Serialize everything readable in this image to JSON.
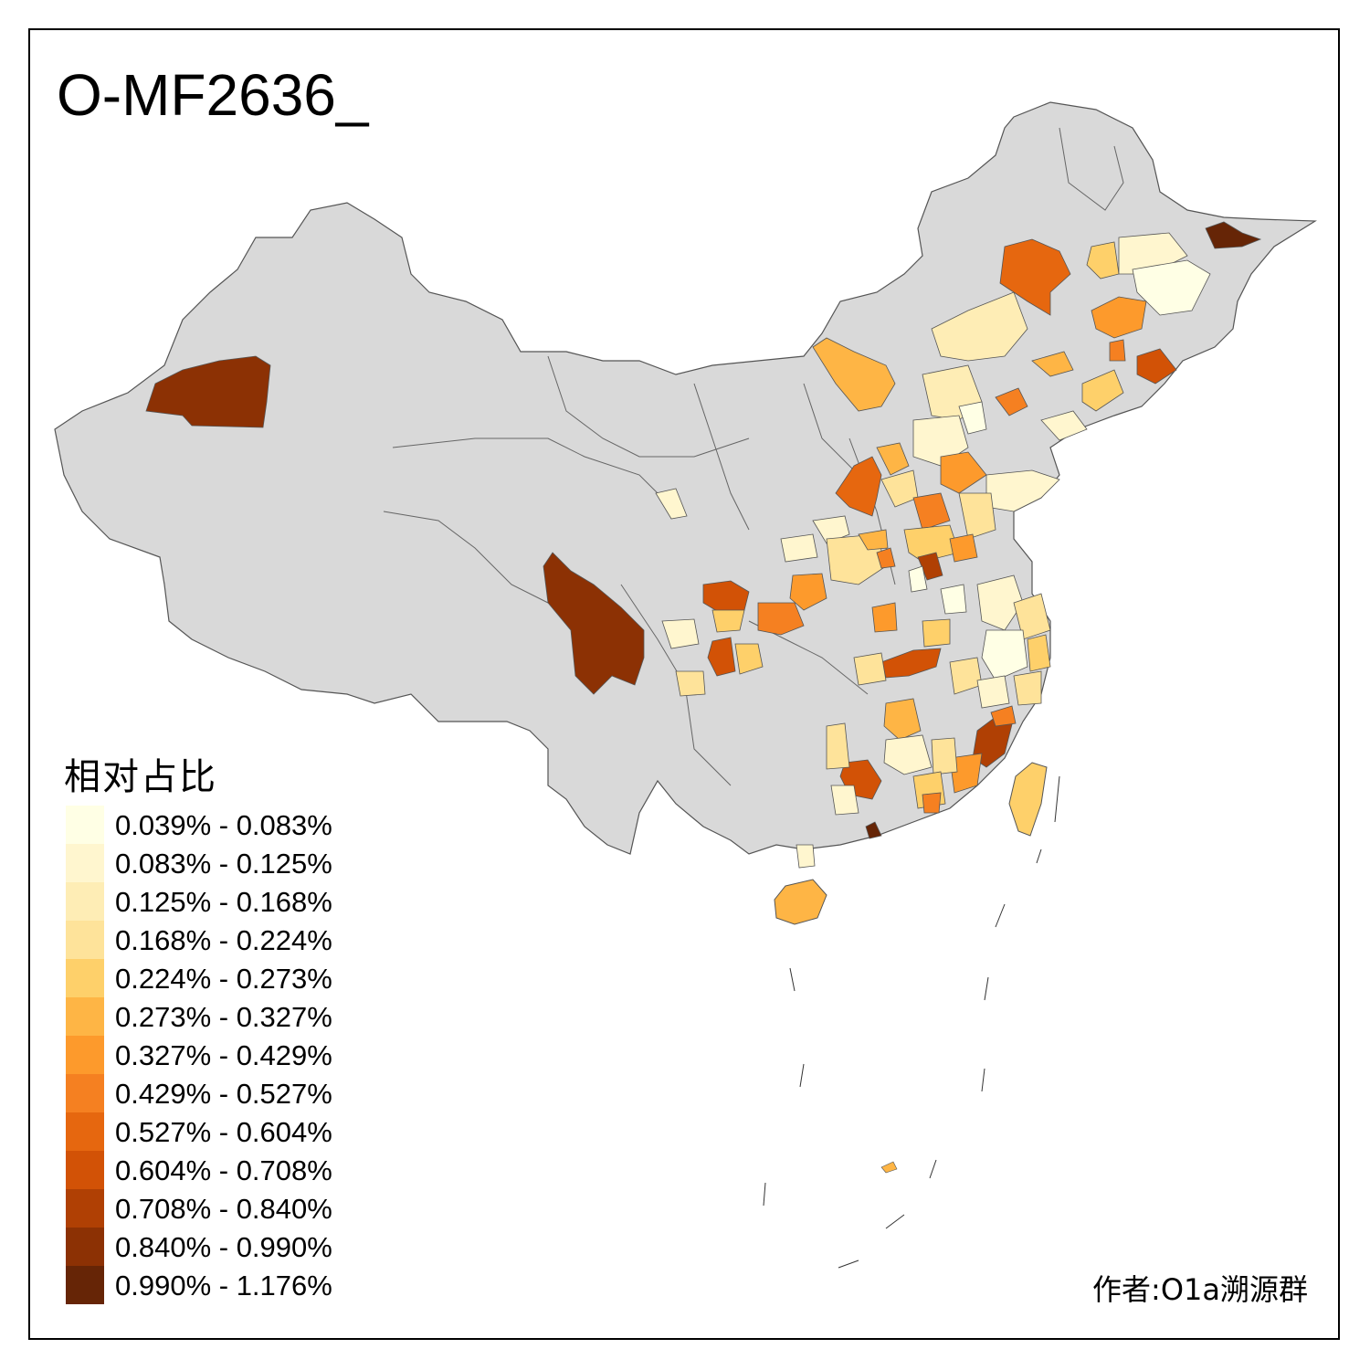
{
  "title": "O-MF2636_",
  "legend": {
    "title": "相对占比",
    "items": [
      {
        "label": "0.039% - 0.083%",
        "color": "#ffffe5"
      },
      {
        "label": "0.083% - 0.125%",
        "color": "#fff6cf"
      },
      {
        "label": "0.125% - 0.168%",
        "color": "#feedb5"
      },
      {
        "label": "0.168% - 0.224%",
        "color": "#fee39a"
      },
      {
        "label": "0.224% - 0.273%",
        "color": "#fed06a"
      },
      {
        "label": "0.273% - 0.327%",
        "color": "#feb545"
      },
      {
        "label": "0.327% - 0.429%",
        "color": "#fd9a2c"
      },
      {
        "label": "0.429% - 0.527%",
        "color": "#f58021"
      },
      {
        "label": "0.527% - 0.604%",
        "color": "#e6670f"
      },
      {
        "label": "0.604% - 0.708%",
        "color": "#d25206"
      },
      {
        "label": "0.708% - 0.840%",
        "color": "#b04004"
      },
      {
        "label": "0.840% - 0.990%",
        "color": "#8c3104"
      },
      {
        "label": "0.990% - 1.176%",
        "color": "#662506"
      }
    ]
  },
  "credit": "作者:O1a溯源群",
  "colors": {
    "land": "#d9d9d9",
    "border": "#555555"
  }
}
